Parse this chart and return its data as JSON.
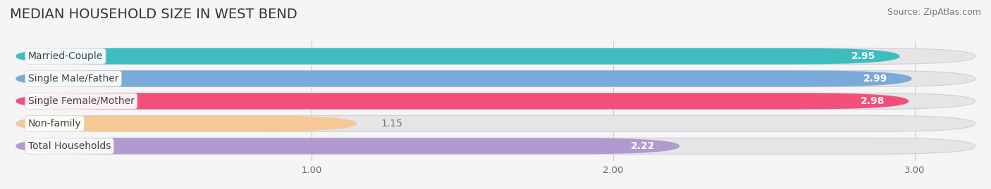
{
  "title": "MEDIAN HOUSEHOLD SIZE IN WEST BEND",
  "source": "Source: ZipAtlas.com",
  "categories": [
    "Married-Couple",
    "Single Male/Father",
    "Single Female/Mother",
    "Non-family",
    "Total Households"
  ],
  "values": [
    2.95,
    2.99,
    2.98,
    1.15,
    2.22
  ],
  "bar_colors": [
    "#3dbdbd",
    "#7aaad8",
    "#f0507a",
    "#f5c896",
    "#b09ad0"
  ],
  "xlim_min": 0.0,
  "xlim_max": 3.22,
  "data_min": 0.0,
  "data_max": 3.0,
  "xticks": [
    1.0,
    2.0,
    3.0
  ],
  "xtick_labels": [
    "1.00",
    "2.00",
    "3.00"
  ],
  "label_color": "#444444",
  "value_color_inside": "#ffffff",
  "value_color_outside": "#777777",
  "title_fontsize": 14,
  "label_fontsize": 10,
  "value_fontsize": 10,
  "source_fontsize": 9,
  "background_color": "#f5f5f5",
  "bar_bg_color": "#e5e5e8",
  "bar_bg_edge_color": "#d0d0d5"
}
